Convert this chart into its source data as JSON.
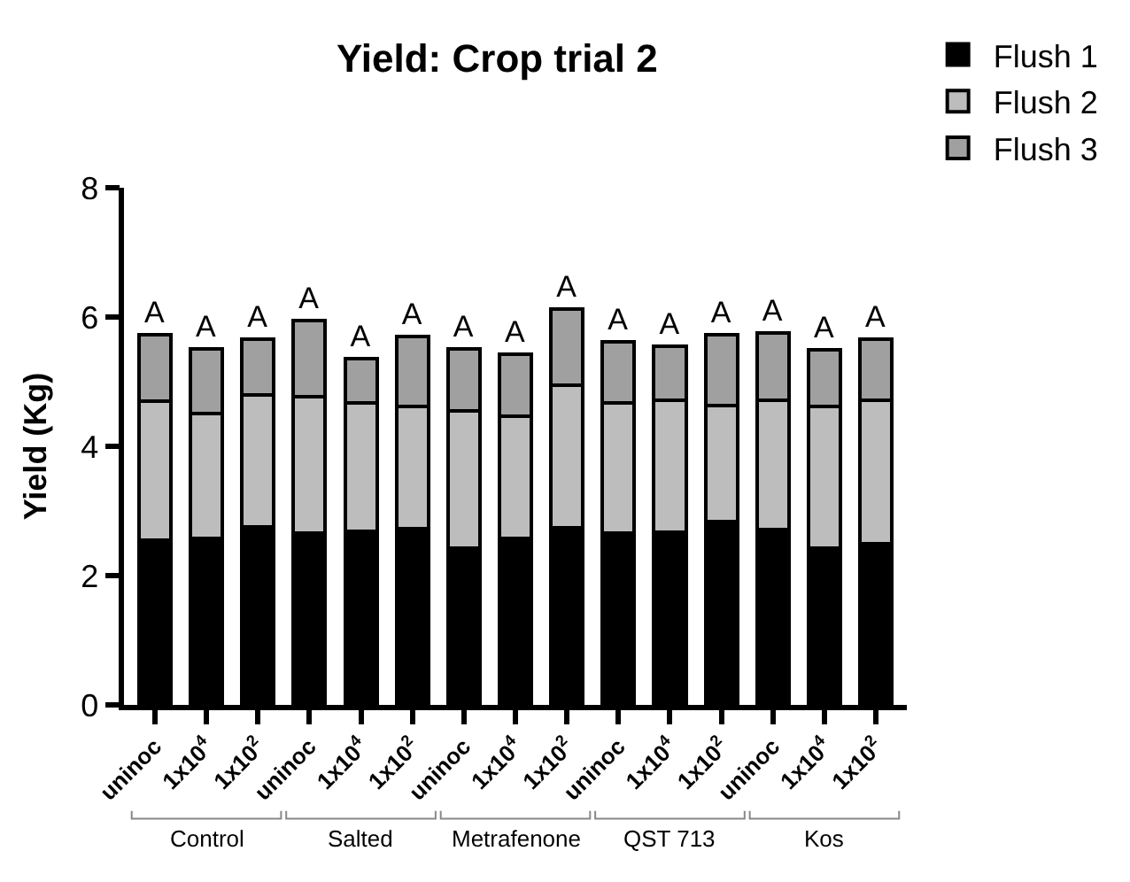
{
  "chart_data": {
    "type": "bar",
    "title": "Yield: Crop trial 2",
    "ylabel": "Yield (Kg)",
    "stacked": true,
    "categories": [
      "uninoc",
      "1x10$^{4}$",
      "1x10$^{2}$",
      "uninoc",
      "1x10$^{4}$",
      "1x10$^{2}$",
      "uninoc",
      "1x10$^{4}$",
      "1x10$^{2}$",
      "uninoc",
      "1x10$^{4}$",
      "1x10$^{2}$",
      "uninoc",
      "1x10$^{4}$",
      "1x10$^{2}$"
    ],
    "series": [
      {
        "name": "Flush 1",
        "color": "#000000",
        "values": [
          2.55,
          2.57,
          2.76,
          2.66,
          2.68,
          2.72,
          2.42,
          2.58,
          2.74,
          2.66,
          2.67,
          2.83,
          2.71,
          2.43,
          2.49
        ]
      },
      {
        "name": "Flush 2",
        "color": "#bdbdbd",
        "values": [
          2.15,
          1.94,
          2.03,
          2.11,
          1.99,
          1.89,
          2.13,
          1.88,
          2.2,
          2.01,
          2.04,
          1.8,
          2.0,
          2.18,
          2.22
        ]
      },
      {
        "name": "Flush 3",
        "color": "#a0a0a0",
        "values": [
          1.03,
          1.0,
          0.87,
          1.17,
          0.68,
          1.09,
          0.96,
          0.96,
          1.19,
          0.95,
          0.84,
          1.09,
          1.05,
          0.88,
          0.95
        ],
        "value_labels": [
          "A",
          "A",
          "A",
          "A",
          "A",
          "A",
          "A",
          "A",
          "A",
          "A",
          "A",
          "A",
          "A",
          "A",
          "A"
        ]
      }
    ],
    "annotations": [
      "Control",
      "Salted",
      "Metrafenone",
      "QST 713",
      "Kos"
    ],
    "ylim": [
      0,
      8
    ],
    "yticks": [
      0,
      2,
      4,
      6,
      8
    ],
    "legend": "top right"
  }
}
